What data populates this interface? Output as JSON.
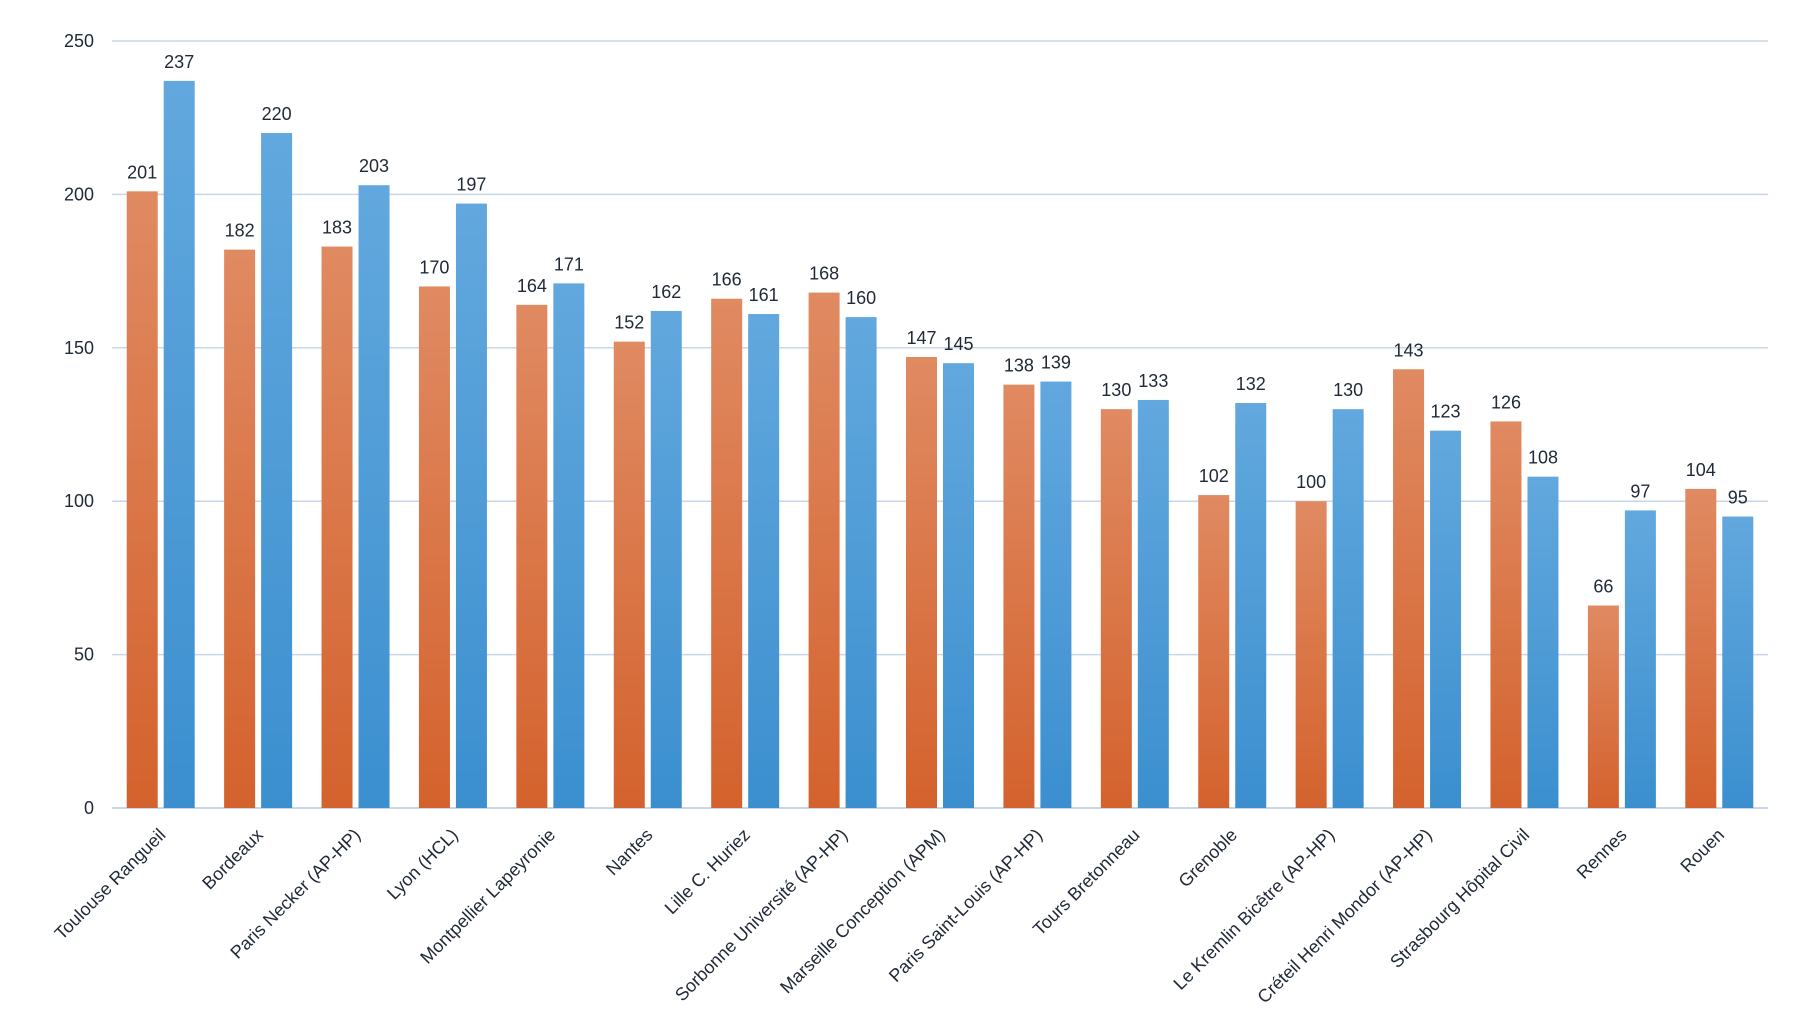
{
  "chart_data": {
    "type": "bar",
    "title": "",
    "xlabel": "",
    "ylabel": "",
    "ylim": [
      0,
      250
    ],
    "yticks": [
      0,
      50,
      100,
      150,
      200,
      250
    ],
    "grid": true,
    "legend": "none",
    "categories": [
      "Toulouse Rangueil",
      "Bordeaux",
      "Paris Necker (AP-HP)",
      "Lyon (HCL)",
      "Montpellier Lapeyronie",
      "Nantes",
      "Lille C. Huriez",
      "Sorbonne Université (AP-HP)",
      "Marseille Conception (APM)",
      "Paris Saint-Louis (AP-HP)",
      "Tours Bretonneau",
      "Grenoble",
      "Le Kremlin Bicêtre (AP-HP)",
      "Créteil Henri Mondor (AP-HP)",
      "Strasbourg Hôpital Civil",
      "Rennes",
      "Rouen"
    ],
    "series": [
      {
        "color_top": "#e08a62",
        "color_bottom": "#d4622d",
        "values": [
          201,
          182,
          183,
          170,
          164,
          152,
          166,
          168,
          147,
          138,
          130,
          102,
          100,
          143,
          126,
          66,
          104
        ]
      },
      {
        "color_top": "#62a8de",
        "color_bottom": "#3b8fcf",
        "values": [
          237,
          220,
          203,
          197,
          171,
          162,
          161,
          160,
          145,
          139,
          133,
          132,
          130,
          123,
          108,
          97,
          95
        ]
      }
    ],
    "colors": {
      "grid": "#c8d6ea",
      "text": "#1f2937"
    }
  }
}
